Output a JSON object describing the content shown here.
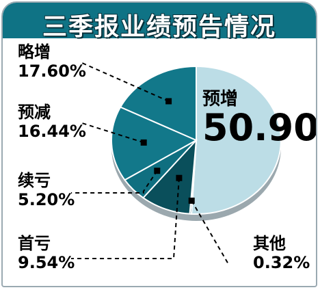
{
  "chart_data": {
    "type": "pie",
    "title": "三季报业绩预告情况",
    "slices": [
      {
        "label": "预增",
        "value": 50.9,
        "value_label": "50.90",
        "unit": "%",
        "color": "#bcdde6"
      },
      {
        "label": "其他",
        "value": 0.32,
        "value_label": "0.32%",
        "color": "#0a4f5b"
      },
      {
        "label": "首亏",
        "value": 9.54,
        "value_label": "9.54%",
        "color": "#0a4f5b"
      },
      {
        "label": "续亏",
        "value": 5.2,
        "value_label": "5.20%",
        "color": "#0f6f80"
      },
      {
        "label": "预减",
        "value": 16.44,
        "value_label": "16.44%",
        "color": "#12788a"
      },
      {
        "label": "略增",
        "value": 17.6,
        "value_label": "17.60%",
        "color": "#12788a"
      }
    ]
  }
}
